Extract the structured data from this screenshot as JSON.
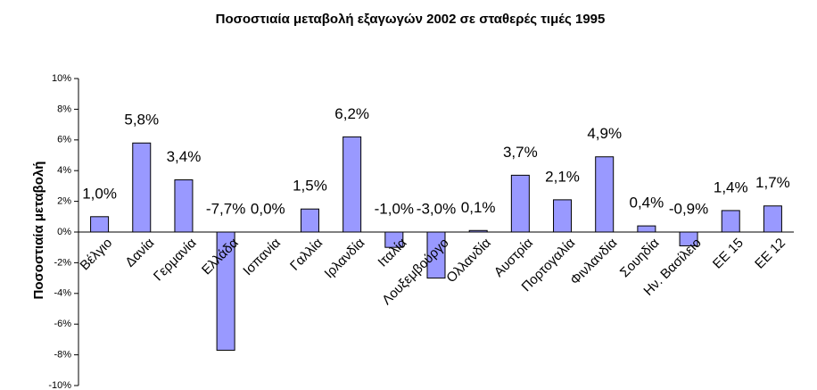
{
  "chart_data": {
    "type": "bar",
    "title": "Ποσοστιαία μεταβολή εξαγωγών 2002 σε σταθερές τιμές 1995",
    "y_label": "Ποσοστιαία μεταβολή",
    "categories": [
      "Βέλγιο",
      "Δανία",
      "Γερμανία",
      "Ελλάδα",
      "Ισπανία",
      "Γαλλία",
      "Ιρλανδία",
      "Ιταλία",
      "Λουξεμβούργο",
      "Ολλανδία",
      "Αυστρία",
      "Πορτογαλία",
      "Φινλανδία",
      "Σουηδία",
      "Ην. Βασίλειο",
      "ΕΕ 15",
      "ΕΕ 12"
    ],
    "values": [
      1.0,
      5.8,
      3.4,
      -7.7,
      0.0,
      1.5,
      6.2,
      -1.0,
      -3.0,
      0.1,
      3.7,
      2.1,
      4.9,
      0.4,
      -0.9,
      1.4,
      1.7
    ],
    "value_labels": [
      "1,0%",
      "5,8%",
      "3,4%",
      "-7,7%",
      "0,0%",
      "1,5%",
      "6,2%",
      "-1,0%",
      "-3,0%",
      "0,1%",
      "3,7%",
      "2,1%",
      "4,9%",
      "0,4%",
      "-0,9%",
      "1,4%",
      "1,7%"
    ],
    "color": "#9999ff",
    "ylim": [
      -10,
      10
    ],
    "yticks": [
      {
        "value": -10,
        "label": "-10%"
      },
      {
        "value": -8,
        "label": "-8%"
      },
      {
        "value": -6,
        "label": "-6%"
      },
      {
        "value": -4,
        "label": "-4%"
      },
      {
        "value": -2,
        "label": "-2%"
      },
      {
        "value": 0,
        "label": "0%"
      },
      {
        "value": 2,
        "label": "2%"
      },
      {
        "value": 4,
        "label": "4%"
      },
      {
        "value": 6,
        "label": "6%"
      },
      {
        "value": 8,
        "label": "8%"
      },
      {
        "value": 10,
        "label": "10%"
      }
    ],
    "grid": false
  }
}
